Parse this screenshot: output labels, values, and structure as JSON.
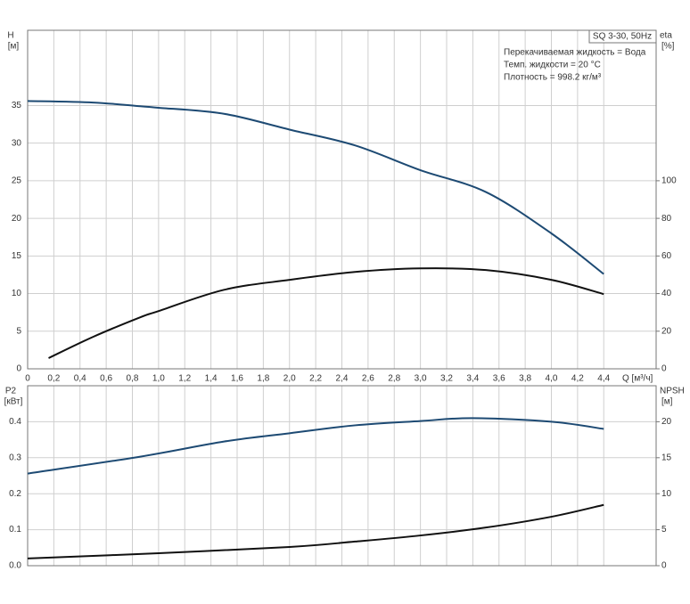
{
  "chart_data": [
    {
      "type": "line",
      "ylabel": "H",
      "yunit": "[м]",
      "y2label": "eta",
      "y2unit": "[%]",
      "xlabel": "Q [м³/ч]",
      "model": "SQ 3-30, 50Hz",
      "annotations": [
        "Перекачиваемая жидкость = Вода",
        "Темп. жидкости = 20 °C",
        "Плотность = 998.2 кг/м³"
      ],
      "xlim": [
        0,
        4.8
      ],
      "xticks": [
        0,
        {
          "value": 0.2,
          "label": "0,2"
        },
        {
          "value": 0.4,
          "label": "0,4"
        },
        {
          "value": 0.6,
          "label": "0,6"
        },
        {
          "value": 0.8,
          "label": "0,8"
        },
        {
          "value": 1.0,
          "label": "1,0"
        },
        {
          "value": 1.2,
          "label": "1,2"
        },
        {
          "value": 1.4,
          "label": "1,4"
        },
        {
          "value": 1.6,
          "label": "1,6"
        },
        {
          "value": 1.8,
          "label": "1,8"
        },
        {
          "value": 2.0,
          "label": "2,0"
        },
        {
          "value": 2.2,
          "label": "2,2"
        },
        {
          "value": 2.4,
          "label": "2,4"
        },
        {
          "value": 2.6,
          "label": "2,6"
        },
        {
          "value": 2.8,
          "label": "2,8"
        },
        {
          "value": 3.0,
          "label": "3,0"
        },
        {
          "value": 3.2,
          "label": "3,2"
        },
        {
          "value": 3.4,
          "label": "3,4"
        },
        {
          "value": 3.6,
          "label": "3,6"
        },
        {
          "value": 3.8,
          "label": "3,8"
        },
        {
          "value": 4.0,
          "label": "4,0"
        },
        {
          "value": 4.2,
          "label": "4,2"
        },
        {
          "value": 4.4,
          "label": "4,4"
        }
      ],
      "ylim": [
        0,
        45
      ],
      "yticks": [
        0,
        5,
        10,
        15,
        20,
        25,
        30,
        35
      ],
      "y2lim": [
        0,
        180
      ],
      "y2ticks": [
        0,
        20,
        40,
        60,
        80,
        100
      ],
      "series": [
        {
          "color": "#1d4a73",
          "x": [
            0,
            0.5,
            0.86,
            1.0,
            1.5,
            2.0,
            2.5,
            3.0,
            3.5,
            4.0,
            4.4
          ],
          "values": [
            35.6,
            35.4,
            34.9,
            34.7,
            33.9,
            31.8,
            29.7,
            26.4,
            23.5,
            18.0,
            12.6
          ]
        },
        {
          "color": "#111111",
          "axis": "y2",
          "x": [
            0.16,
            0.5,
            0.86,
            1.0,
            1.5,
            2.0,
            2.5,
            3.0,
            3.5,
            4.0,
            4.4
          ],
          "values": [
            5.7,
            17,
            27.4,
            30.7,
            42,
            47.3,
            51.5,
            53.4,
            52.5,
            47.3,
            39.7
          ]
        }
      ]
    },
    {
      "type": "line",
      "ylabel": "P2",
      "yunit": "[кВт]",
      "y2label": "NPSH",
      "y2unit": "[м]",
      "show_xtick_labels": false,
      "xlim": [
        0,
        4.8
      ],
      "xticks": [
        0,
        0.2,
        0.4,
        0.6,
        0.8,
        1.0,
        1.2,
        1.4,
        1.6,
        1.8,
        2.0,
        2.2,
        2.4,
        2.6,
        2.8,
        3.0,
        3.2,
        3.4,
        3.6,
        3.8,
        4.0,
        4.2,
        4.4
      ],
      "ylim": [
        0,
        0.5
      ],
      "yticks": [
        {
          "value": 0,
          "label": "0.0"
        },
        0.1,
        0.2,
        0.3,
        0.4
      ],
      "y2lim": [
        0,
        25
      ],
      "y2ticks": [
        0,
        5,
        10,
        15,
        20
      ],
      "series": [
        {
          "color": "#1d4a73",
          "x": [
            0,
            0.86,
            1.5,
            2.0,
            2.5,
            3.0,
            3.4,
            4.0,
            4.4
          ],
          "values": [
            0.256,
            0.303,
            0.345,
            0.368,
            0.39,
            0.402,
            0.41,
            0.4,
            0.38
          ]
        },
        {
          "color": "#111111",
          "axis": "y2",
          "x": [
            0,
            1.0,
            2.0,
            2.5,
            3.0,
            3.5,
            4.0,
            4.4
          ],
          "values": [
            1.0,
            1.74,
            2.6,
            3.35,
            4.2,
            5.3,
            6.8,
            8.45
          ]
        }
      ]
    }
  ]
}
